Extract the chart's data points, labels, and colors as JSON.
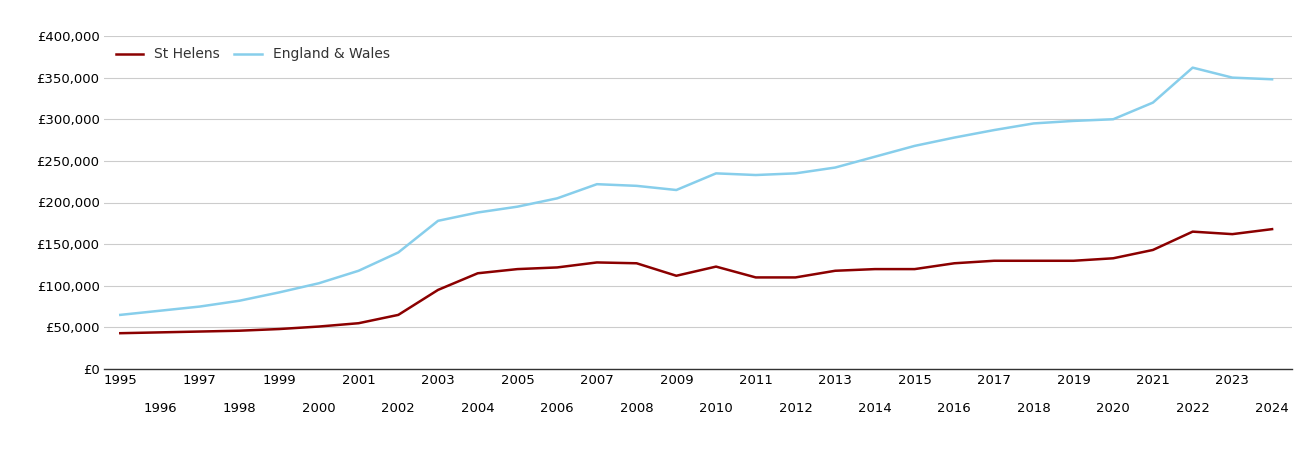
{
  "st_helens_years": [
    1995,
    1996,
    1997,
    1998,
    1999,
    2000,
    2001,
    2002,
    2003,
    2004,
    2005,
    2006,
    2007,
    2008,
    2009,
    2010,
    2011,
    2012,
    2013,
    2014,
    2015,
    2016,
    2017,
    2018,
    2019,
    2020,
    2021,
    2022,
    2023,
    2024
  ],
  "st_helens_values": [
    43000,
    44000,
    45000,
    46000,
    48000,
    51000,
    55000,
    65000,
    95000,
    115000,
    120000,
    122000,
    128000,
    127000,
    112000,
    123000,
    110000,
    110000,
    118000,
    120000,
    120000,
    127000,
    130000,
    130000,
    130000,
    133000,
    143000,
    165000,
    162000,
    168000
  ],
  "england_wales_years": [
    1995,
    1996,
    1997,
    1998,
    1999,
    2000,
    2001,
    2002,
    2003,
    2004,
    2005,
    2006,
    2007,
    2008,
    2009,
    2010,
    2011,
    2012,
    2013,
    2014,
    2015,
    2016,
    2017,
    2018,
    2019,
    2020,
    2021,
    2022,
    2023,
    2024
  ],
  "england_wales_values": [
    65000,
    70000,
    75000,
    82000,
    92000,
    103000,
    118000,
    140000,
    178000,
    188000,
    195000,
    205000,
    222000,
    220000,
    215000,
    235000,
    233000,
    235000,
    242000,
    255000,
    268000,
    278000,
    287000,
    295000,
    298000,
    300000,
    320000,
    362000,
    350000,
    348000
  ],
  "st_helens_color": "#8B0000",
  "england_wales_color": "#87CEEB",
  "legend_text_color": "#333333",
  "st_helens_label": "St Helens",
  "england_wales_label": "England & Wales",
  "ylim": [
    0,
    400000
  ],
  "yticks": [
    0,
    50000,
    100000,
    150000,
    200000,
    250000,
    300000,
    350000,
    400000
  ],
  "xlim_min": 1994.6,
  "xlim_max": 2024.5,
  "background_color": "#ffffff",
  "grid_color": "#cccccc",
  "line_width": 1.8,
  "legend_fontsize": 10,
  "tick_fontsize": 9.5
}
